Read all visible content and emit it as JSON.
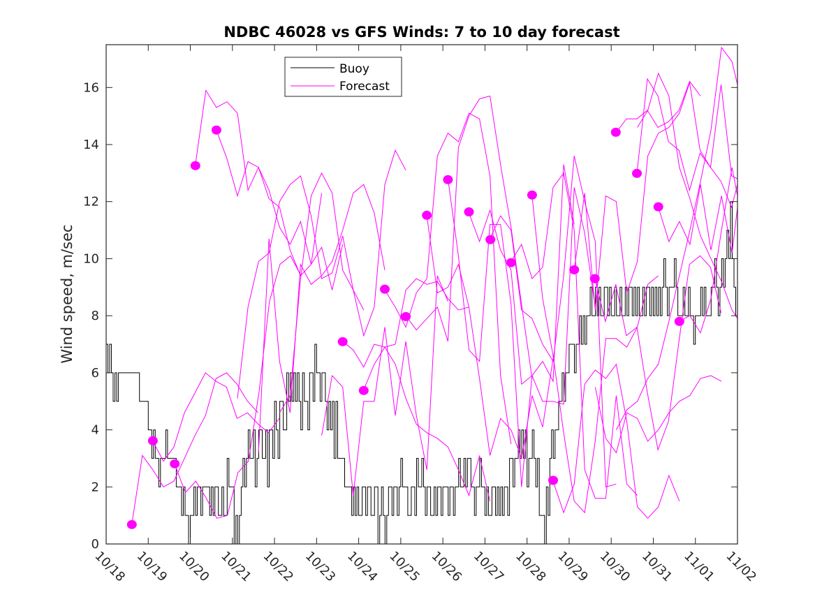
{
  "chart_data": {
    "type": "line",
    "title": "NDBC 46028 vs GFS Winds: 7 to 10 day forecast",
    "xlabel": "",
    "ylabel": "Wind speed, m/sec",
    "x_unit": "days since 10/18",
    "xlim": [
      0,
      15
    ],
    "ylim": [
      0,
      17.5
    ],
    "x_tick_values": [
      0,
      1,
      2,
      3,
      4,
      5,
      6,
      7,
      8,
      9,
      10,
      11,
      12,
      13,
      14,
      15
    ],
    "x_tick_labels": [
      "10/18",
      "10/19",
      "10/20",
      "10/21",
      "10/22",
      "10/23",
      "10/24",
      "10/25",
      "10/26",
      "10/27",
      "10/28",
      "10/29",
      "10/30",
      "10/31",
      "11/01",
      "11/02"
    ],
    "y_ticks": [
      0,
      2,
      4,
      6,
      8,
      10,
      12,
      14,
      16
    ],
    "grid": false,
    "legend": {
      "position": "top-center",
      "entries": [
        {
          "label": "Buoy",
          "color": "#000000"
        },
        {
          "label": "Forecast",
          "color": "#ff00ff"
        }
      ]
    },
    "colors": {
      "buoy": "#000000",
      "forecast": "#ff00ff",
      "axis": "#262626"
    },
    "buoy": {
      "name": "Buoy",
      "step_hours": 1,
      "x_start": 0,
      "values": [
        7,
        6,
        7,
        6,
        5,
        6,
        5,
        6,
        6,
        6,
        6,
        6,
        6,
        6,
        6,
        6,
        6,
        6,
        6,
        5,
        5,
        5,
        5,
        5,
        4,
        4,
        3,
        4,
        3,
        3,
        2,
        3,
        3,
        3,
        4,
        3,
        3,
        3,
        3,
        3,
        2,
        2,
        2,
        1,
        2,
        1,
        1,
        0,
        1,
        1,
        2,
        1,
        2,
        2,
        1,
        2,
        2,
        2,
        2,
        1,
        2,
        1,
        2,
        2,
        1,
        1,
        2,
        1,
        1,
        3,
        2,
        2,
        2,
        0,
        1,
        0,
        1,
        2,
        3,
        2,
        3,
        4,
        3,
        3,
        4,
        2,
        3,
        4,
        4,
        3,
        3,
        4,
        2,
        4,
        4,
        3,
        5,
        4,
        3,
        5,
        5,
        4,
        4,
        6,
        5,
        6,
        5,
        6,
        5,
        6,
        5,
        4,
        6,
        5,
        5,
        4,
        6,
        6,
        5,
        7,
        6,
        6,
        5,
        6,
        6,
        5,
        4,
        5,
        4,
        5,
        3,
        5,
        3,
        3,
        3,
        3,
        2,
        2,
        2,
        2,
        1,
        2,
        1,
        2,
        1,
        1,
        2,
        2,
        1,
        2,
        2,
        1,
        1,
        2,
        2,
        0,
        1,
        2,
        1,
        0,
        1,
        2,
        2,
        1,
        2,
        2,
        1,
        2,
        3,
        2,
        2,
        2,
        1,
        1,
        2,
        2,
        1,
        3,
        2,
        2,
        3,
        2,
        1,
        2,
        2,
        1,
        1,
        2,
        1,
        2,
        2,
        1,
        2,
        2,
        2,
        1,
        2,
        2,
        1,
        2,
        2,
        3,
        2,
        2,
        3,
        2,
        3,
        3,
        2,
        2,
        1,
        2,
        2,
        3,
        2,
        2,
        1,
        2,
        1,
        1,
        2,
        2,
        1,
        2,
        1,
        2,
        1,
        2,
        2,
        1,
        3,
        3,
        2,
        3,
        3,
        4,
        3,
        4,
        3,
        4,
        2,
        3,
        3,
        4,
        3,
        2,
        3,
        1,
        1,
        1,
        0,
        2,
        1,
        3,
        4,
        3,
        4,
        4,
        5,
        5,
        6,
        5,
        6,
        6,
        7,
        7,
        7,
        6,
        7,
        7,
        8,
        7,
        8,
        7,
        8,
        8,
        9,
        8,
        8,
        9,
        8,
        9,
        8,
        8,
        9,
        9,
        8,
        9,
        8,
        8,
        9,
        8,
        8,
        9,
        8,
        8,
        9,
        8,
        9,
        9,
        8,
        9,
        8,
        9,
        8,
        8,
        9,
        8,
        9,
        9,
        8,
        9,
        8,
        9,
        8,
        9,
        8,
        9,
        10,
        9,
        8,
        9,
        9,
        9,
        10,
        9,
        8,
        8,
        8,
        9,
        8,
        8,
        9,
        8,
        8,
        7,
        8,
        8,
        8,
        9,
        8,
        9,
        8,
        8,
        8,
        9,
        9,
        10,
        9,
        8,
        9,
        10,
        9,
        10,
        11,
        10,
        12,
        10,
        9,
        8,
        8,
        9,
        8,
        8,
        9,
        8,
        7,
        7,
        8,
        7,
        7,
        6,
        6,
        7,
        6,
        6,
        5,
        5,
        5,
        5,
        4,
        4,
        3,
        3,
        2,
        2,
        2,
        1,
        1,
        1,
        2,
        2,
        1,
        1,
        1,
        1,
        2,
        1,
        2,
        2,
        1,
        2,
        3,
        4,
        5,
        6,
        7,
        8,
        8,
        9,
        8,
        9,
        8,
        8,
        9,
        8,
        7,
        8,
        8,
        8,
        7,
        6,
        7,
        6,
        6,
        5,
        5,
        4,
        4,
        3,
        3,
        2,
        2,
        1,
        1,
        1,
        2,
        2,
        3,
        4,
        5,
        6,
        7,
        8,
        9,
        10,
        9,
        10,
        11,
        10,
        11,
        12,
        11,
        12,
        11,
        13,
        12,
        11,
        12,
        11,
        13,
        12,
        11,
        12,
        12,
        11,
        10,
        11,
        10,
        9,
        10,
        9,
        9,
        8,
        9,
        8,
        7,
        6,
        6,
        5,
        4,
        3,
        2,
        2,
        2,
        1,
        3,
        2,
        2,
        3,
        4,
        5,
        6,
        7,
        6,
        7,
        6,
        5,
        6,
        7,
        6,
        7,
        8,
        7,
        8,
        7,
        8,
        7,
        6,
        7,
        6,
        6,
        7,
        6,
        5,
        5,
        6,
        6,
        6,
        5,
        6,
        7,
        7,
        7,
        8,
        9,
        8,
        9,
        8,
        9,
        9,
        10,
        9,
        10,
        11,
        10,
        11,
        10,
        11,
        10,
        11,
        10,
        11,
        11,
        12,
        11,
        12,
        11,
        12,
        11,
        12,
        13,
        12,
        11,
        12,
        11,
        11,
        12,
        11,
        10,
        11,
        10,
        11,
        10,
        10,
        9,
        9,
        8,
        7,
        8,
        7,
        8,
        7,
        8,
        7,
        8,
        7,
        7,
        8,
        7,
        8,
        6,
        7,
        7,
        8,
        7,
        8,
        8,
        8
      ]
    },
    "forecasts": [
      {
        "x_start": 0.61,
        "values": [
          0.7,
          3.1,
          2.6,
          2.0,
          2.2,
          3.0,
          3.8,
          4.5,
          5.8,
          6.0,
          5.6,
          5.0,
          4.6
        ]
      },
      {
        "x_start": 1.11,
        "values": [
          3.6,
          2.9,
          3.4,
          4.6,
          5.3,
          6.0,
          5.7,
          5.5,
          4.4,
          4.6,
          4.2,
          3.9,
          4.4
        ]
      },
      {
        "x_start": 1.63,
        "values": [
          2.8,
          1.8,
          2.2,
          1.6,
          0.9,
          1.0,
          2.5,
          2.9,
          5.3,
          8.5,
          9.8,
          10.1,
          9.4
        ]
      },
      {
        "x_start": 2.12,
        "values": [
          13.3,
          15.9,
          15.3,
          15.5,
          15.1,
          12.4,
          13.2,
          12.4,
          11.1,
          10.5,
          11.3,
          9.8,
          12.3
        ]
      },
      {
        "x_start": 2.62,
        "values": [
          14.5,
          13.5,
          12.2,
          13.4,
          13.2,
          12.1,
          11.8,
          10.3,
          9.4,
          9.8,
          10.4,
          8.9,
          10.5
        ]
      },
      {
        "x_start": 3.12,
        "values": [
          5.1,
          8.3,
          9.9,
          10.2,
          12.0,
          12.6,
          12.9,
          11.5,
          9.3,
          9.5,
          10.8,
          8.9,
          8.2
        ]
      },
      {
        "x_start": 3.62,
        "values": [
          3.2,
          10.7,
          6.4,
          4.6,
          9.8,
          9.1,
          9.4,
          9.9,
          11.0,
          12.3,
          12.6,
          11.6,
          9.6
        ]
      },
      {
        "x_start": 4.12,
        "values": [
          4.6,
          5.2,
          9.3,
          12.2,
          13.0,
          12.3,
          9.6,
          8.9,
          7.3,
          8.3,
          12.6,
          13.8,
          13.1
        ]
      },
      {
        "x_start": 5.12,
        "values": [
          3.8,
          5.9,
          5.5,
          1.7,
          5.0,
          5.0,
          7.6,
          4.5,
          7.1,
          4.5,
          2.6,
          9.4,
          8.5
        ]
      },
      {
        "x_start": 5.62,
        "values": [
          7.1,
          6.8,
          6.2,
          7.0,
          6.9,
          7.0,
          8.9,
          9.3,
          9.1,
          9.2,
          8.6,
          8.2,
          8.3
        ]
      },
      {
        "x_start": 6.12,
        "values": [
          5.4,
          6.3,
          6.9,
          6.3,
          5.1,
          4.2,
          3.9,
          3.7,
          3.4,
          2.6,
          1.7,
          3.1,
          1.5
        ]
      },
      {
        "x_start": 6.62,
        "values": [
          8.9,
          8.3,
          7.6,
          8.8,
          9.3,
          13.6,
          14.4,
          14.1,
          15.1,
          14.9,
          12.9,
          5.9,
          3.5
        ]
      },
      {
        "x_start": 7.12,
        "values": [
          8.0,
          7.5,
          7.9,
          8.3,
          7.1,
          13.9,
          15.0,
          15.6,
          15.7,
          13.3,
          11.1,
          8.4,
          5.8
        ]
      },
      {
        "x_start": 7.62,
        "values": [
          11.5,
          8.8,
          9.0,
          9.8,
          8.3,
          5.8,
          3.1,
          4.4,
          4.0,
          3.0,
          5.2,
          4.1,
          6.5
        ]
      },
      {
        "x_start": 8.12,
        "values": [
          12.8,
          10.1,
          6.8,
          6.4,
          11.2,
          11.2,
          8.4,
          2.0,
          5.9,
          6.4,
          5.7,
          13.3,
          11.2
        ]
      },
      {
        "x_start": 8.62,
        "values": [
          11.6,
          10.6,
          11.7,
          10.3,
          9.6,
          5.6,
          5.9,
          5.0,
          5.0,
          4.9,
          12.5,
          10.9,
          8.3
        ]
      },
      {
        "x_start": 9.12,
        "values": [
          10.7,
          11.5,
          11.0,
          8.2,
          7.9,
          7.0,
          6.4,
          9.4,
          13.6,
          12.0,
          10.6,
          2.0,
          2.1
        ]
      },
      {
        "x_start": 9.62,
        "values": [
          9.9,
          10.5,
          9.3,
          9.7,
          12.5,
          13.0,
          11.0,
          2.6,
          1.6,
          1.6,
          5.2,
          2.1,
          1.7
        ]
      },
      {
        "x_start": 10.12,
        "values": [
          12.2,
          8.6,
          6.6,
          3.9,
          1.5,
          1.1,
          3.6,
          7.2,
          7.2,
          6.9,
          7.6,
          9.1,
          9.4
        ]
      },
      {
        "x_start": 10.62,
        "values": [
          2.2,
          1.1,
          2.1,
          5.6,
          6.1,
          5.8,
          6.3,
          4.3,
          1.3,
          0.9,
          1.3,
          2.4,
          1.5
        ]
      },
      {
        "x_start": 11.12,
        "values": [
          9.6,
          12.3,
          8.2,
          12.2,
          12.0,
          8.8,
          9.9,
          13.6,
          14.4,
          14.6,
          15.1,
          16.2,
          15.7
        ]
      },
      {
        "x_start": 11.61,
        "values": [
          9.3,
          7.8,
          9.1,
          7.3,
          7.6,
          5.3,
          3.3,
          4.3,
          7.1,
          9.8,
          10.1,
          9.7,
          8.1
        ]
      },
      {
        "x_start": 12.11,
        "values": [
          14.4,
          14.9,
          14.9,
          15.2,
          14.6,
          14.8,
          15.2,
          16.2,
          13.8,
          13.2,
          12.7,
          11.8,
          12.6
        ]
      },
      {
        "x_start": 12.61,
        "values": [
          13.0,
          16.3,
          15.7,
          14.1,
          13.8,
          12.4,
          13.7,
          13.2,
          16.1,
          12.9,
          12.8,
          12.5,
          9.5
        ]
      },
      {
        "x_start": 13.12,
        "values": [
          11.8,
          10.6,
          11.3,
          10.5,
          12.6,
          10.3,
          12.2,
          10.2,
          11.8,
          11.1,
          10.3,
          9.1,
          10.3
        ]
      },
      {
        "x_start": 13.62,
        "values": [
          7.8,
          8.0,
          7.4,
          8.6,
          11.0,
          13.2,
          12.2,
          11.2,
          10.5,
          9.3,
          8.5,
          6.1,
          5.9
        ]
      },
      {
        "x_start": 12.62,
        "values": [
          14.6,
          15.2,
          16.5,
          15.7,
          13.2,
          12.1,
          10.8,
          10.0,
          9.2,
          8.2,
          7.9,
          8.1,
          5.5
        ]
      },
      {
        "x_start": 12.12,
        "values": [
          4.0,
          4.7,
          5.0,
          5.8,
          6.3,
          7.8,
          9.4,
          11.0,
          12.7,
          14.5,
          17.4,
          16.9,
          16.1
        ]
      },
      {
        "x_start": 11.62,
        "values": [
          5.5,
          3.7,
          3.2,
          4.6,
          4.4,
          3.6,
          4.0,
          4.6,
          5.0,
          5.2,
          5.8,
          5.9,
          5.7
        ]
      }
    ],
    "forecast_start_markers": [
      {
        "x": 0.61,
        "y": 0.68
      },
      {
        "x": 1.11,
        "y": 3.62
      },
      {
        "x": 1.63,
        "y": 2.81
      },
      {
        "x": 2.12,
        "y": 13.26
      },
      {
        "x": 2.62,
        "y": 14.51
      },
      {
        "x": 5.62,
        "y": 7.09
      },
      {
        "x": 6.12,
        "y": 5.38
      },
      {
        "x": 6.62,
        "y": 8.93
      },
      {
        "x": 7.12,
        "y": 7.97
      },
      {
        "x": 7.62,
        "y": 11.52
      },
      {
        "x": 8.12,
        "y": 12.77
      },
      {
        "x": 8.62,
        "y": 11.64
      },
      {
        "x": 9.13,
        "y": 10.67
      },
      {
        "x": 9.62,
        "y": 9.86
      },
      {
        "x": 10.12,
        "y": 12.23
      },
      {
        "x": 10.62,
        "y": 2.23
      },
      {
        "x": 11.12,
        "y": 9.61
      },
      {
        "x": 11.61,
        "y": 9.3
      },
      {
        "x": 12.11,
        "y": 14.43
      },
      {
        "x": 12.61,
        "y": 12.99
      },
      {
        "x": 13.12,
        "y": 11.82
      },
      {
        "x": 13.62,
        "y": 7.8
      }
    ]
  }
}
